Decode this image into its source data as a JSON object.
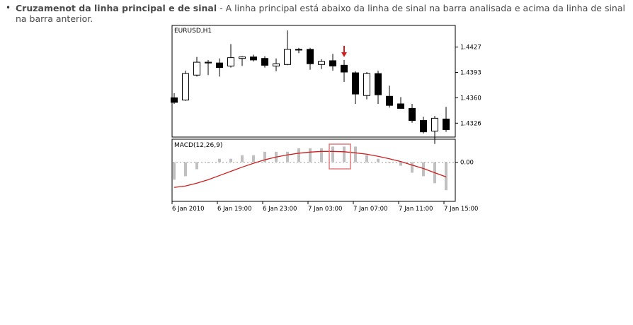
{
  "bullet": {
    "title": "Cruzamenot da linha principal e de sinal",
    "separator": " - ",
    "text": "A linha principal está abaixo da linha de sinal na barra analisada e acima da linha de sinal na barra anterior."
  },
  "chart_data": [
    {
      "type": "candlestick",
      "title": "EURUSD,H1",
      "ylim": [
        1.431,
        1.445
      ],
      "yticks": [
        "1.44270",
        "1.43935",
        "1.43600",
        "1.43265"
      ],
      "ytick_values": [
        1.4427,
        1.43935,
        1.436,
        1.43265
      ],
      "candles": [
        {
          "o": 1.436,
          "h": 1.4366,
          "l": 1.4352,
          "c": 1.4354
        },
        {
          "o": 1.4357,
          "h": 1.4396,
          "l": 1.4356,
          "c": 1.4392
        },
        {
          "o": 1.439,
          "h": 1.4414,
          "l": 1.4388,
          "c": 1.4407
        },
        {
          "o": 1.4406,
          "h": 1.441,
          "l": 1.439,
          "c": 1.4407
        },
        {
          "o": 1.4406,
          "h": 1.4412,
          "l": 1.4388,
          "c": 1.44
        },
        {
          "o": 1.4402,
          "h": 1.4431,
          "l": 1.44,
          "c": 1.4413
        },
        {
          "o": 1.4412,
          "h": 1.4415,
          "l": 1.4402,
          "c": 1.4414
        },
        {
          "o": 1.4414,
          "h": 1.4417,
          "l": 1.4408,
          "c": 1.441
        },
        {
          "o": 1.4412,
          "h": 1.4415,
          "l": 1.44,
          "c": 1.4403
        },
        {
          "o": 1.4402,
          "h": 1.4412,
          "l": 1.4395,
          "c": 1.4405
        },
        {
          "o": 1.4404,
          "h": 1.4449,
          "l": 1.4403,
          "c": 1.4424
        },
        {
          "o": 1.4424,
          "h": 1.4426,
          "l": 1.4419,
          "c": 1.4423
        },
        {
          "o": 1.4424,
          "h": 1.4426,
          "l": 1.4397,
          "c": 1.4405
        },
        {
          "o": 1.4404,
          "h": 1.4411,
          "l": 1.4398,
          "c": 1.4408
        },
        {
          "o": 1.4409,
          "h": 1.4418,
          "l": 1.4396,
          "c": 1.4402
        },
        {
          "o": 1.4403,
          "h": 1.441,
          "l": 1.4381,
          "c": 1.4394
        },
        {
          "o": 1.4393,
          "h": 1.4395,
          "l": 1.4352,
          "c": 1.4365
        },
        {
          "o": 1.4363,
          "h": 1.4394,
          "l": 1.4358,
          "c": 1.4392
        },
        {
          "o": 1.4392,
          "h": 1.4396,
          "l": 1.4352,
          "c": 1.4364
        },
        {
          "o": 1.4362,
          "h": 1.4376,
          "l": 1.4347,
          "c": 1.435
        },
        {
          "o": 1.4352,
          "h": 1.4361,
          "l": 1.4346,
          "c": 1.4346
        },
        {
          "o": 1.4346,
          "h": 1.4352,
          "l": 1.4327,
          "c": 1.433
        },
        {
          "o": 1.433,
          "h": 1.4335,
          "l": 1.4313,
          "c": 1.4315
        },
        {
          "o": 1.4316,
          "h": 1.4336,
          "l": 1.4299,
          "c": 1.4333
        },
        {
          "o": 1.4332,
          "h": 1.4348,
          "l": 1.4315,
          "c": 1.4318
        }
      ],
      "arrow_candle_index": 15,
      "arrow_color": "#cc1f1f"
    },
    {
      "type": "bar+line",
      "title": "MACD(12,26,9)",
      "ylim": [
        -0.0011,
        0.0006
      ],
      "yticks": [
        "0.00"
      ],
      "ytick_values": [
        0.0
      ],
      "histogram_color": "#c0c0c0",
      "signal_color": "#cc1f1f",
      "histogram": [
        -0.0005,
        -0.0004,
        -0.0002,
        0.0,
        0.0001,
        0.0001,
        0.0002,
        0.0002,
        0.0003,
        0.0003,
        0.0003,
        0.0004,
        0.0004,
        0.0004,
        0.00045,
        0.00045,
        0.00045,
        0.0002,
        0.0001,
        0.0,
        -0.0001,
        -0.0003,
        -0.0004,
        -0.0006,
        -0.0008
      ],
      "signal": [
        -0.00072,
        -0.00068,
        -0.0006,
        -0.0005,
        -0.00038,
        -0.00026,
        -0.00014,
        -3e-05,
        7e-05,
        0.00015,
        0.00021,
        0.00026,
        0.00029,
        0.00031,
        0.00031,
        0.0003,
        0.00027,
        0.00023,
        0.00017,
        0.0001,
        2e-05,
        -8e-05,
        -0.00018,
        -0.0003,
        -0.00042
      ],
      "highlight_candle_index": 15,
      "highlight_color": "#e07a7a",
      "xticks": [
        {
          "label": "6 Jan 2010",
          "index": 0
        },
        {
          "label": "6 Jan 19:00",
          "index": 4
        },
        {
          "label": "6 Jan 23:00",
          "index": 8
        },
        {
          "label": "7 Jan 03:00",
          "index": 12
        },
        {
          "label": "7 Jan 07:00",
          "index": 16
        },
        {
          "label": "7 Jan 11:00",
          "index": 20
        },
        {
          "label": "7 Jan 15:00",
          "index": 24
        }
      ]
    }
  ]
}
